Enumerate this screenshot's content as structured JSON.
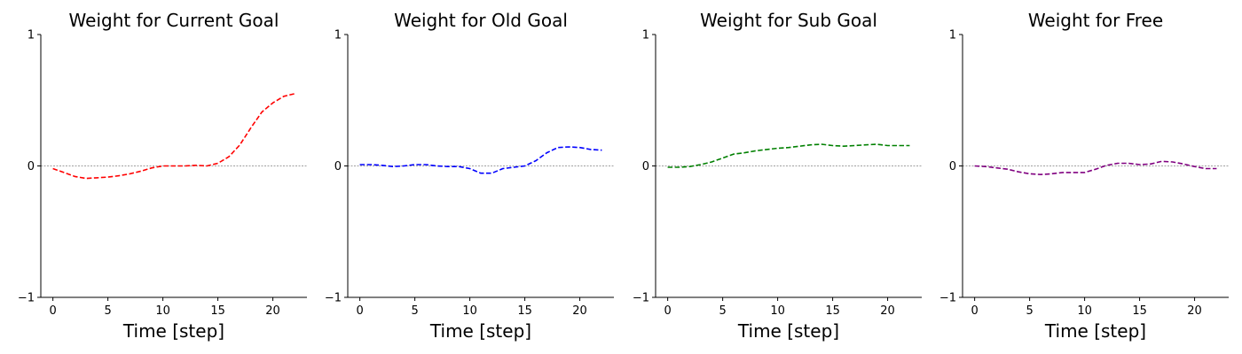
{
  "chart_data": [
    {
      "type": "line",
      "title": "Weight for Current Goal",
      "xlabel": "Time [step]",
      "ylabel": "",
      "xlim": [
        -1.1,
        23.1
      ],
      "ylim": [
        -1,
        1
      ],
      "xticks": [
        0,
        5,
        10,
        15,
        20
      ],
      "yticks": [
        -1,
        0,
        1
      ],
      "zero_line": true,
      "grid": false,
      "series": [
        {
          "color": "#ff0000",
          "linestyle": "dashed",
          "x": [
            0,
            1,
            2,
            3,
            4,
            5,
            6,
            7,
            8,
            9,
            10,
            11,
            12,
            13,
            14,
            15,
            16,
            17,
            18,
            19,
            20,
            21,
            22
          ],
          "values": [
            -0.02,
            -0.05,
            -0.08,
            -0.095,
            -0.09,
            -0.085,
            -0.075,
            -0.06,
            -0.04,
            -0.015,
            0.0,
            0.0,
            0.0,
            0.005,
            0.0,
            0.02,
            0.07,
            0.16,
            0.29,
            0.41,
            0.48,
            0.53,
            0.55
          ]
        }
      ]
    },
    {
      "type": "line",
      "title": "Weight for Old Goal",
      "xlabel": "Time [step]",
      "ylabel": "",
      "xlim": [
        -1.1,
        23.1
      ],
      "ylim": [
        -1,
        1
      ],
      "xticks": [
        0,
        5,
        10,
        15,
        20
      ],
      "yticks": [
        -1,
        0,
        1
      ],
      "zero_line": true,
      "grid": false,
      "series": [
        {
          "color": "#0000ff",
          "linestyle": "dashed",
          "x": [
            0,
            1,
            2,
            3,
            4,
            5,
            6,
            7,
            8,
            9,
            10,
            11,
            12,
            13,
            14,
            15,
            16,
            17,
            18,
            19,
            20,
            21,
            22
          ],
          "values": [
            0.01,
            0.01,
            0.005,
            -0.005,
            0.0,
            0.01,
            0.01,
            0.0,
            -0.005,
            -0.005,
            -0.02,
            -0.055,
            -0.055,
            -0.02,
            -0.01,
            0.0,
            0.04,
            0.1,
            0.14,
            0.145,
            0.14,
            0.125,
            0.12
          ]
        }
      ]
    },
    {
      "type": "line",
      "title": "Weight for Sub Goal",
      "xlabel": "Time [step]",
      "ylabel": "",
      "xlim": [
        -1.1,
        23.1
      ],
      "ylim": [
        -1,
        1
      ],
      "xticks": [
        0,
        5,
        10,
        15,
        20
      ],
      "yticks": [
        -1,
        0,
        1
      ],
      "zero_line": true,
      "grid": false,
      "series": [
        {
          "color": "#008000",
          "linestyle": "dashed",
          "x": [
            0,
            1,
            2,
            3,
            4,
            5,
            6,
            7,
            8,
            9,
            10,
            11,
            12,
            13,
            14,
            15,
            16,
            17,
            18,
            19,
            20,
            21,
            22
          ],
          "values": [
            -0.01,
            -0.01,
            -0.005,
            0.01,
            0.03,
            0.06,
            0.09,
            0.1,
            0.115,
            0.125,
            0.135,
            0.14,
            0.15,
            0.16,
            0.165,
            0.155,
            0.15,
            0.155,
            0.16,
            0.165,
            0.155,
            0.155,
            0.155
          ]
        }
      ]
    },
    {
      "type": "line",
      "title": "Weight for Free",
      "xlabel": "Time [step]",
      "ylabel": "",
      "xlim": [
        -1.1,
        23.1
      ],
      "ylim": [
        -1,
        1
      ],
      "xticks": [
        0,
        5,
        10,
        15,
        20
      ],
      "yticks": [
        -1,
        0,
        1
      ],
      "zero_line": true,
      "grid": false,
      "series": [
        {
          "color": "#800080",
          "linestyle": "dashed",
          "x": [
            0,
            1,
            2,
            3,
            4,
            5,
            6,
            7,
            8,
            9,
            10,
            11,
            12,
            13,
            14,
            15,
            16,
            17,
            18,
            19,
            20,
            21,
            22
          ],
          "values": [
            0.0,
            -0.005,
            -0.015,
            -0.025,
            -0.045,
            -0.06,
            -0.065,
            -0.06,
            -0.05,
            -0.05,
            -0.05,
            -0.025,
            0.005,
            0.02,
            0.02,
            0.01,
            0.015,
            0.035,
            0.03,
            0.015,
            -0.005,
            -0.02,
            -0.02
          ]
        }
      ]
    }
  ]
}
